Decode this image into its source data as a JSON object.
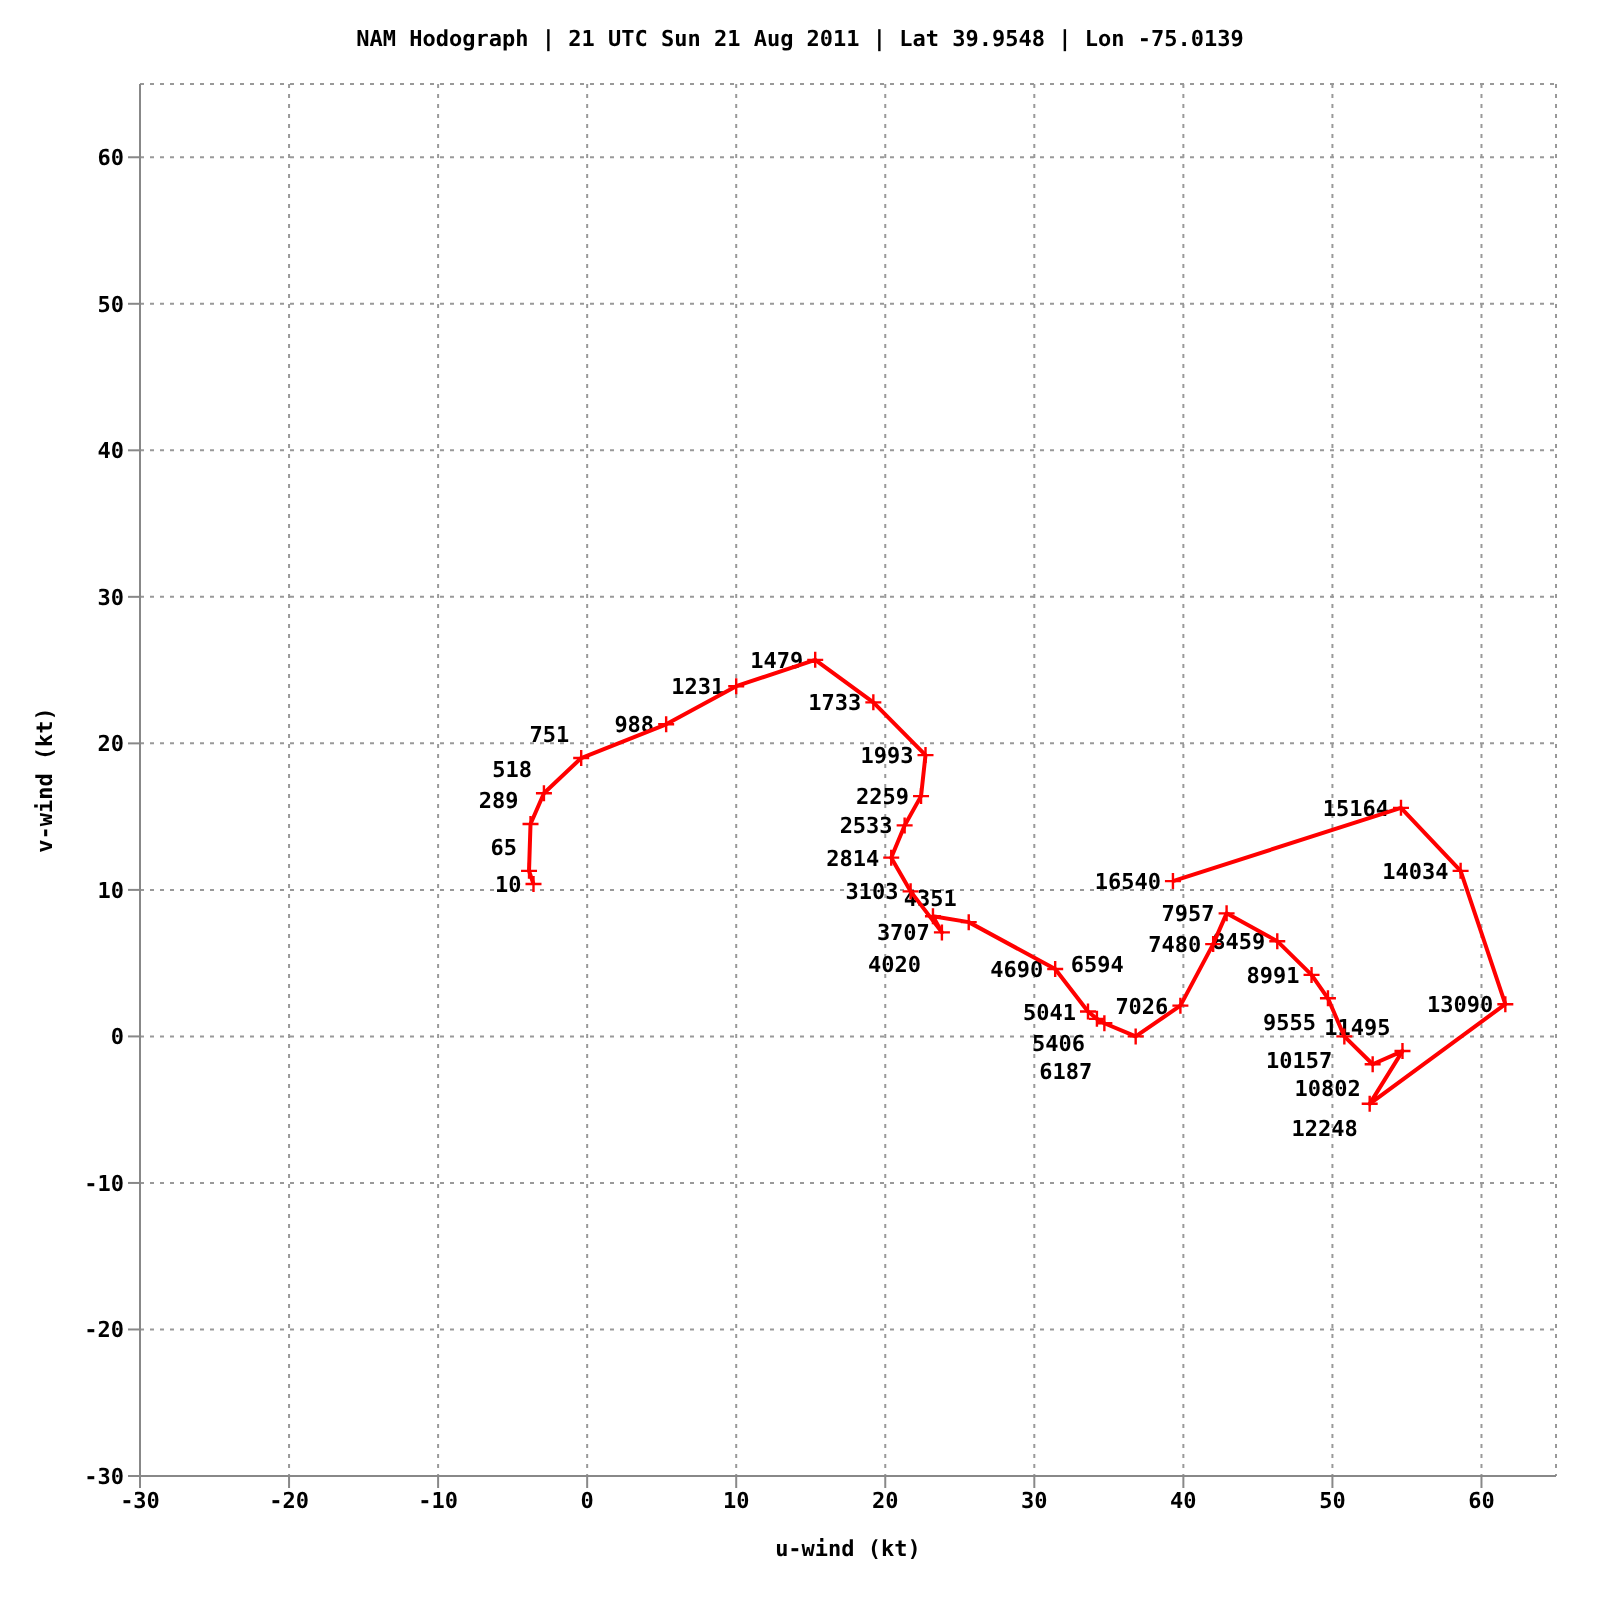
{
  "chart_data": {
    "type": "line",
    "title": "NAM Hodograph | 21 UTC Sun 21 Aug 2011 | Lat 39.9548 | Lon -75.0139",
    "xlabel": "u-wind (kt)",
    "ylabel": "v-wind (kt)",
    "xlim": [
      -30,
      65
    ],
    "ylim": [
      -30,
      65
    ],
    "xticks": [
      -30,
      -20,
      -10,
      0,
      10,
      20,
      30,
      40,
      50,
      60
    ],
    "yticks": [
      -30,
      -20,
      -10,
      0,
      10,
      20,
      30,
      40,
      50,
      60
    ],
    "grid": true,
    "legend": false,
    "marker": "cross",
    "line_style": "solid",
    "series": [
      {
        "color": "#ff0000",
        "x": [
          -3.6,
          -3.9,
          -3.8,
          -2.9,
          -0.4,
          5.3,
          10.0,
          15.3,
          19.2,
          22.7,
          22.4,
          21.3,
          20.4,
          21.7,
          23.8,
          23.2,
          25.6,
          31.4,
          33.6,
          34.2,
          34.7,
          36.8,
          39.8,
          42.0,
          42.9,
          46.3,
          48.6,
          49.7,
          50.8,
          52.7,
          54.7,
          52.5,
          61.6,
          58.6,
          54.6,
          39.3
        ],
        "values": [
          10.4,
          11.3,
          14.5,
          16.6,
          19.0,
          21.3,
          23.9,
          25.7,
          22.8,
          19.2,
          16.4,
          14.4,
          12.2,
          9.9,
          7.1,
          8.2,
          7.8,
          4.6,
          1.7,
          1.2,
          0.9,
          0.0,
          2.1,
          6.3,
          8.4,
          6.5,
          4.2,
          2.6,
          0.0,
          -1.9,
          -1.0,
          -4.6,
          2.2,
          11.3,
          15.6,
          10.6
        ]
      }
    ],
    "annotations": [
      {
        "text": "10",
        "x": -3.6,
        "y": 10.4
      },
      {
        "text": "65",
        "x": -3.9,
        "y": 11.3
      },
      {
        "text": "289",
        "x": -3.8,
        "y": 14.5
      },
      {
        "text": "518",
        "x": -2.9,
        "y": 16.6
      },
      {
        "text": "751",
        "x": -0.4,
        "y": 19.0
      },
      {
        "text": "988",
        "x": 5.3,
        "y": 21.3
      },
      {
        "text": "1231",
        "x": 10.0,
        "y": 23.9
      },
      {
        "text": "1479",
        "x": 15.3,
        "y": 25.7
      },
      {
        "text": "1733",
        "x": 19.2,
        "y": 22.8
      },
      {
        "text": "1993",
        "x": 22.7,
        "y": 19.2
      },
      {
        "text": "2259",
        "x": 22.4,
        "y": 16.4
      },
      {
        "text": "2533",
        "x": 21.3,
        "y": 14.4
      },
      {
        "text": "2814",
        "x": 20.4,
        "y": 12.2
      },
      {
        "text": "3103",
        "x": 21.7,
        "y": 9.9
      },
      {
        "text": "3707",
        "x": 23.8,
        "y": 7.1
      },
      {
        "text": "4020",
        "x": 23.2,
        "y": 8.2
      },
      {
        "text": "4351",
        "x": 25.6,
        "y": 7.8
      },
      {
        "text": "4690",
        "x": 31.4,
        "y": 4.6
      },
      {
        "text": "5041",
        "x": 33.6,
        "y": 1.7
      },
      {
        "text": "5406",
        "x": 34.2,
        "y": 1.2
      },
      {
        "text": "6187",
        "x": 34.7,
        "y": 0.9
      },
      {
        "text": "6594",
        "x": 36.8,
        "y": 0.0
      },
      {
        "text": "7026",
        "x": 39.8,
        "y": 2.1
      },
      {
        "text": "7480",
        "x": 42.0,
        "y": 6.3
      },
      {
        "text": "7957",
        "x": 42.9,
        "y": 8.4
      },
      {
        "text": "8459",
        "x": 46.3,
        "y": 6.5
      },
      {
        "text": "8991",
        "x": 48.6,
        "y": 4.2
      },
      {
        "text": "9555",
        "x": 49.7,
        "y": 2.6
      },
      {
        "text": "10157",
        "x": 50.8,
        "y": 0.0
      },
      {
        "text": "10802",
        "x": 52.7,
        "y": -1.9
      },
      {
        "text": "11495",
        "x": 54.7,
        "y": -1.0
      },
      {
        "text": "12248",
        "x": 52.5,
        "y": -4.6
      },
      {
        "text": "13090",
        "x": 61.6,
        "y": 2.2
      },
      {
        "text": "14034",
        "x": 58.6,
        "y": 11.3
      },
      {
        "text": "15164",
        "x": 54.6,
        "y": 15.6
      },
      {
        "text": "16540",
        "x": 39.3,
        "y": 10.6
      }
    ]
  }
}
